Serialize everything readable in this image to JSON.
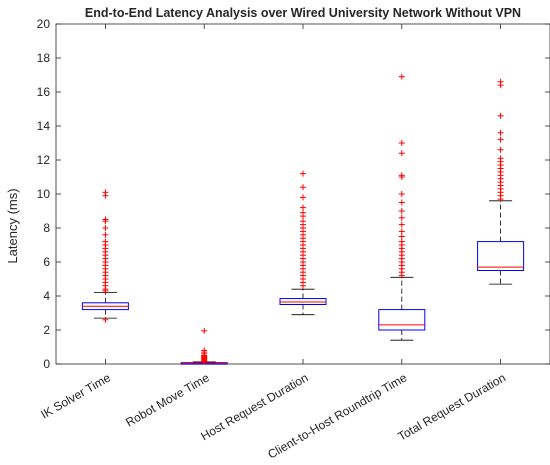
{
  "chart_data": {
    "type": "box",
    "title": "End-to-End Latency Analysis over Wired University Network Without VPN",
    "xlabel": "",
    "ylabel": "Latency (ms)",
    "ylim": [
      0,
      20
    ],
    "yticks": [
      0,
      2,
      4,
      6,
      8,
      10,
      12,
      14,
      16,
      18,
      20
    ],
    "grid": false,
    "colors": {
      "box": "#0000ff",
      "median": "#ff0000",
      "whisker": "#000000",
      "outlier": "#ff0000",
      "axis": "#262626"
    },
    "boxes": [
      {
        "category": "IK Solver Time",
        "whisker_low": 2.7,
        "q1": 3.2,
        "median": 3.4,
        "q3": 3.6,
        "whisker_high": 4.2,
        "outliers": [
          2.6,
          4.3,
          4.4,
          4.6,
          4.8,
          5.0,
          5.2,
          5.4,
          5.6,
          5.8,
          6.0,
          6.2,
          6.4,
          6.6,
          6.8,
          7.0,
          7.2,
          7.6,
          8.0,
          8.4,
          8.5,
          9.9,
          10.1
        ]
      },
      {
        "category": "Robot Move Time",
        "whisker_low": 0.0,
        "q1": 0.03,
        "median": 0.05,
        "q3": 0.08,
        "whisker_high": 0.12,
        "outliers": [
          0.15,
          0.2,
          0.25,
          0.3,
          0.35,
          0.4,
          0.45,
          0.5,
          0.6,
          0.7,
          0.8,
          1.95
        ]
      },
      {
        "category": "Host Request Duration",
        "whisker_low": 2.9,
        "q1": 3.5,
        "median": 3.65,
        "q3": 3.85,
        "whisker_high": 4.4,
        "outliers": [
          4.6,
          4.8,
          5.0,
          5.2,
          5.4,
          5.6,
          5.8,
          6.0,
          6.2,
          6.4,
          6.6,
          6.8,
          7.0,
          7.2,
          7.4,
          7.6,
          7.8,
          8.0,
          8.2,
          8.4,
          8.7,
          8.9,
          9.2,
          9.8,
          10.4,
          11.2
        ]
      },
      {
        "category": "Client-to-Host Roundtrip Time",
        "whisker_low": 1.4,
        "q1": 2.0,
        "median": 2.3,
        "q3": 3.2,
        "whisker_high": 5.1,
        "outliers": [
          5.2,
          5.4,
          5.6,
          5.8,
          6.0,
          6.2,
          6.4,
          6.6,
          6.8,
          7.0,
          7.2,
          7.5,
          7.8,
          8.2,
          8.6,
          9.0,
          9.5,
          10.0,
          11.0,
          11.1,
          12.4,
          13.0,
          16.9
        ]
      },
      {
        "category": "Total Request Duration",
        "whisker_low": 4.7,
        "q1": 5.5,
        "median": 5.7,
        "q3": 7.2,
        "whisker_high": 9.6,
        "outliers": [
          9.7,
          9.9,
          10.1,
          10.3,
          10.5,
          10.7,
          10.9,
          11.1,
          11.3,
          11.5,
          11.7,
          11.9,
          12.1,
          12.6,
          13.2,
          13.6,
          14.6,
          16.4,
          16.6
        ]
      }
    ]
  }
}
